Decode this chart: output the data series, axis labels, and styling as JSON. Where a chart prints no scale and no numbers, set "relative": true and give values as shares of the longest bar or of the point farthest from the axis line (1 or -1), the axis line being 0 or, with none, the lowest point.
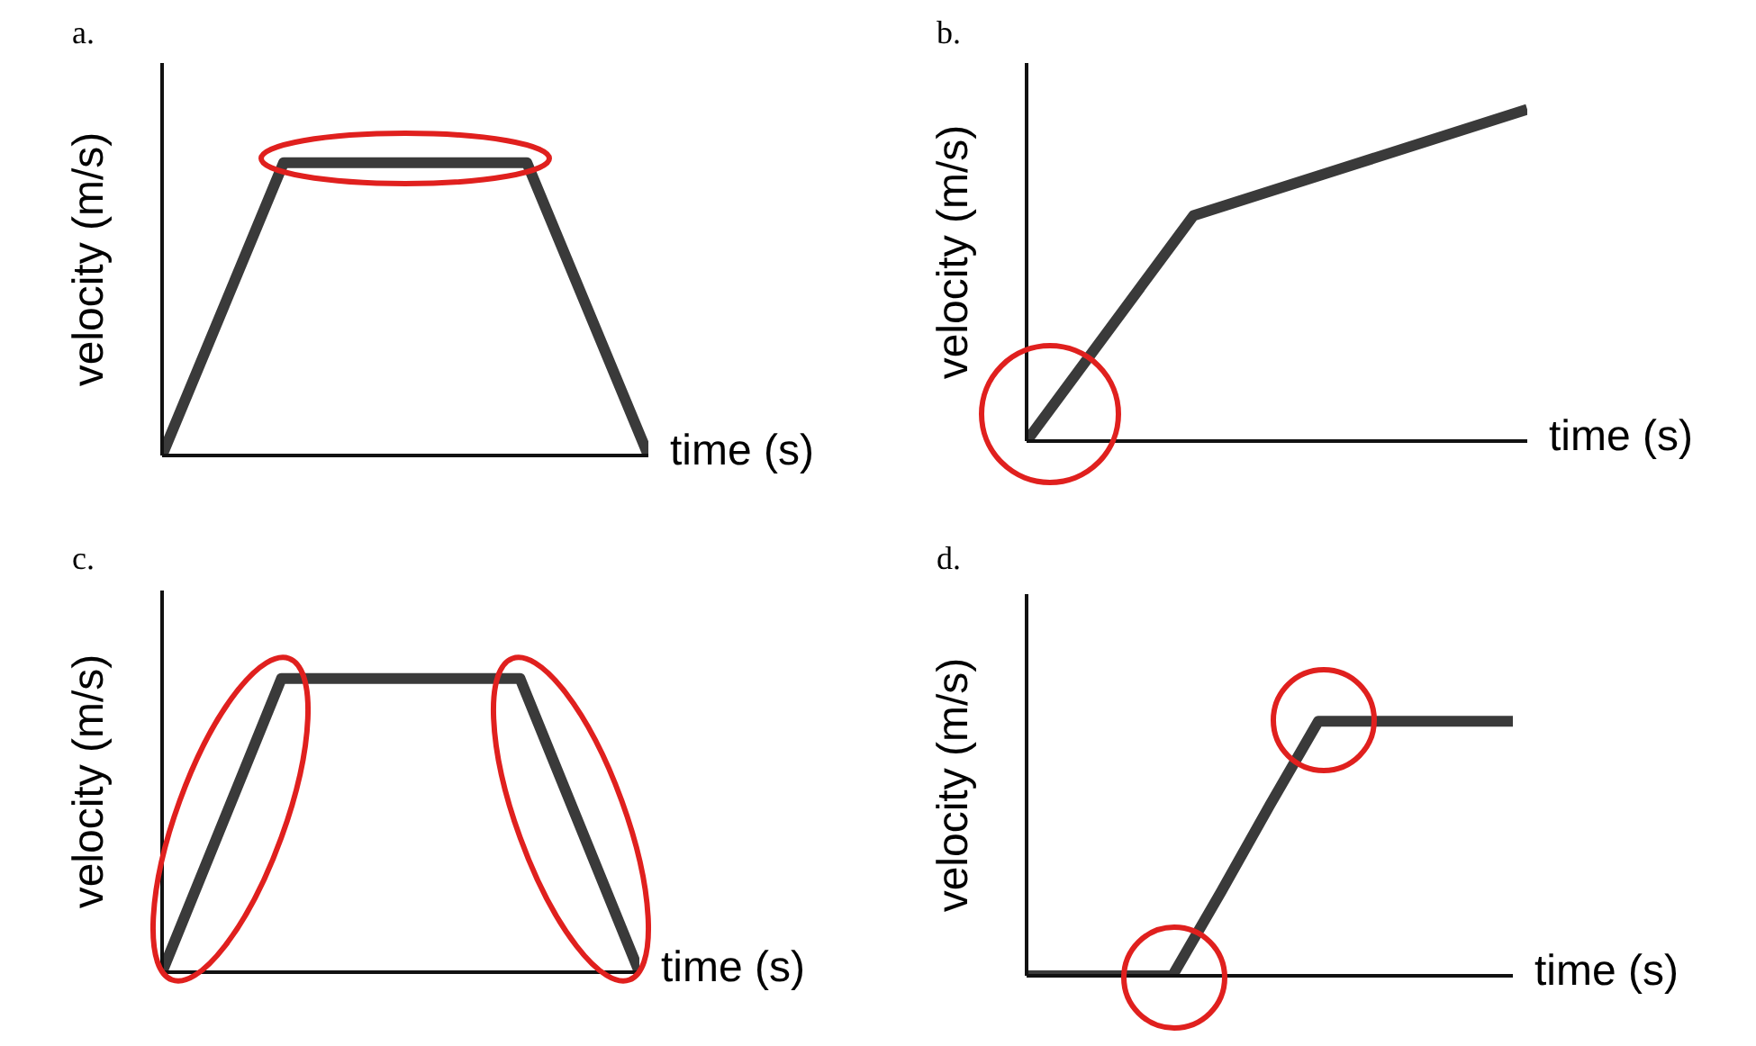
{
  "chart_data": [
    {
      "type": "line",
      "title": "a.",
      "xlabel": "time (s)",
      "ylabel": "velocity (m/s)",
      "relative": true,
      "marker": "none",
      "categories": [
        null,
        null,
        null,
        null,
        null
      ],
      "series": [
        {
          "color": "#3a3a3a",
          "values": [
            0,
            1,
            1,
            1,
            0
          ]
        }
      ]
    },
    {
      "type": "line",
      "title": "b.",
      "xlabel": "time (s)",
      "ylabel": "velocity (m/s)",
      "relative": true,
      "marker": "none",
      "categories": [
        null,
        null,
        null,
        null
      ],
      "series": [
        {
          "color": "#3a3a3a",
          "values": [
            0,
            0.68,
            0.84,
            1
          ]
        }
      ]
    },
    {
      "type": "line",
      "title": "c.",
      "xlabel": "time (s)",
      "ylabel": "velocity (m/s)",
      "relative": true,
      "marker": "none",
      "categories": [
        null,
        null,
        null,
        null,
        null
      ],
      "series": [
        {
          "color": "#3a3a3a",
          "values": [
            0,
            1,
            1,
            1,
            0
          ]
        }
      ]
    },
    {
      "type": "line",
      "title": "d.",
      "xlabel": "time (s)",
      "ylabel": "velocity (m/s)",
      "relative": true,
      "marker": "none",
      "categories": [
        null,
        null,
        null,
        null,
        null,
        null,
        null,
        null,
        null,
        null,
        null
      ],
      "series": [
        {
          "color": "#3a3a3a",
          "values": [
            0,
            0,
            0,
            0,
            0.33,
            0.67,
            1,
            1,
            1,
            1,
            1
          ]
        }
      ]
    }
  ]
}
